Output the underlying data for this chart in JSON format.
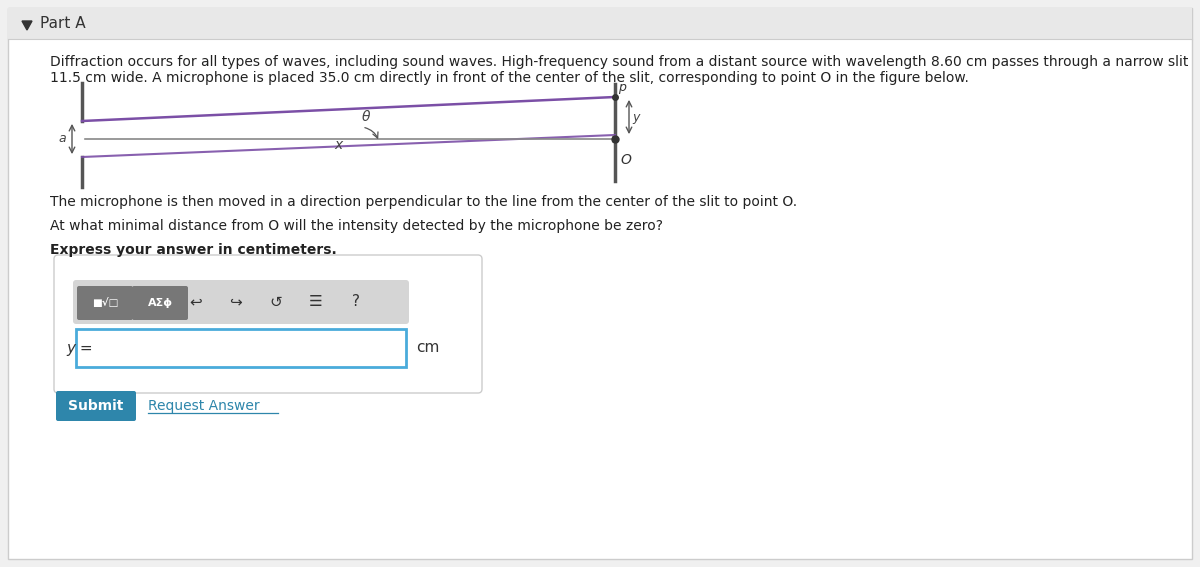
{
  "bg_color": "#f0f0f0",
  "content_bg": "#ffffff",
  "title": "Part A",
  "paragraph_line1": "Diffraction occurs for all types of waves, including sound waves. High-frequency sound from a distant source with wavelength 8.60 cm passes through a narrow slit",
  "paragraph_line2": "11.5 cm wide. A microphone is placed 35.0 cm directly in front of the center of the slit, corresponding to point O in the figure below.",
  "para2": "The microphone is then moved in a direction perpendicular to the line from the center of the slit to point O.",
  "para3": "At what minimal distance from O will the intensity detected by the microphone be zero?",
  "para4": "Express your answer in centimeters.",
  "y_label": "y =",
  "unit": "cm",
  "submit_text": "Submit",
  "request_text": "Request Answer",
  "submit_color": "#2e86ab",
  "input_border_color": "#4aabdb",
  "panel_border_color": "#cccccc",
  "slit_color": "#555555",
  "line_color": "#888888",
  "ray_color": "#7b4fa6",
  "arrow_color": "#555555",
  "fig_width": 12.0,
  "fig_height": 5.67
}
